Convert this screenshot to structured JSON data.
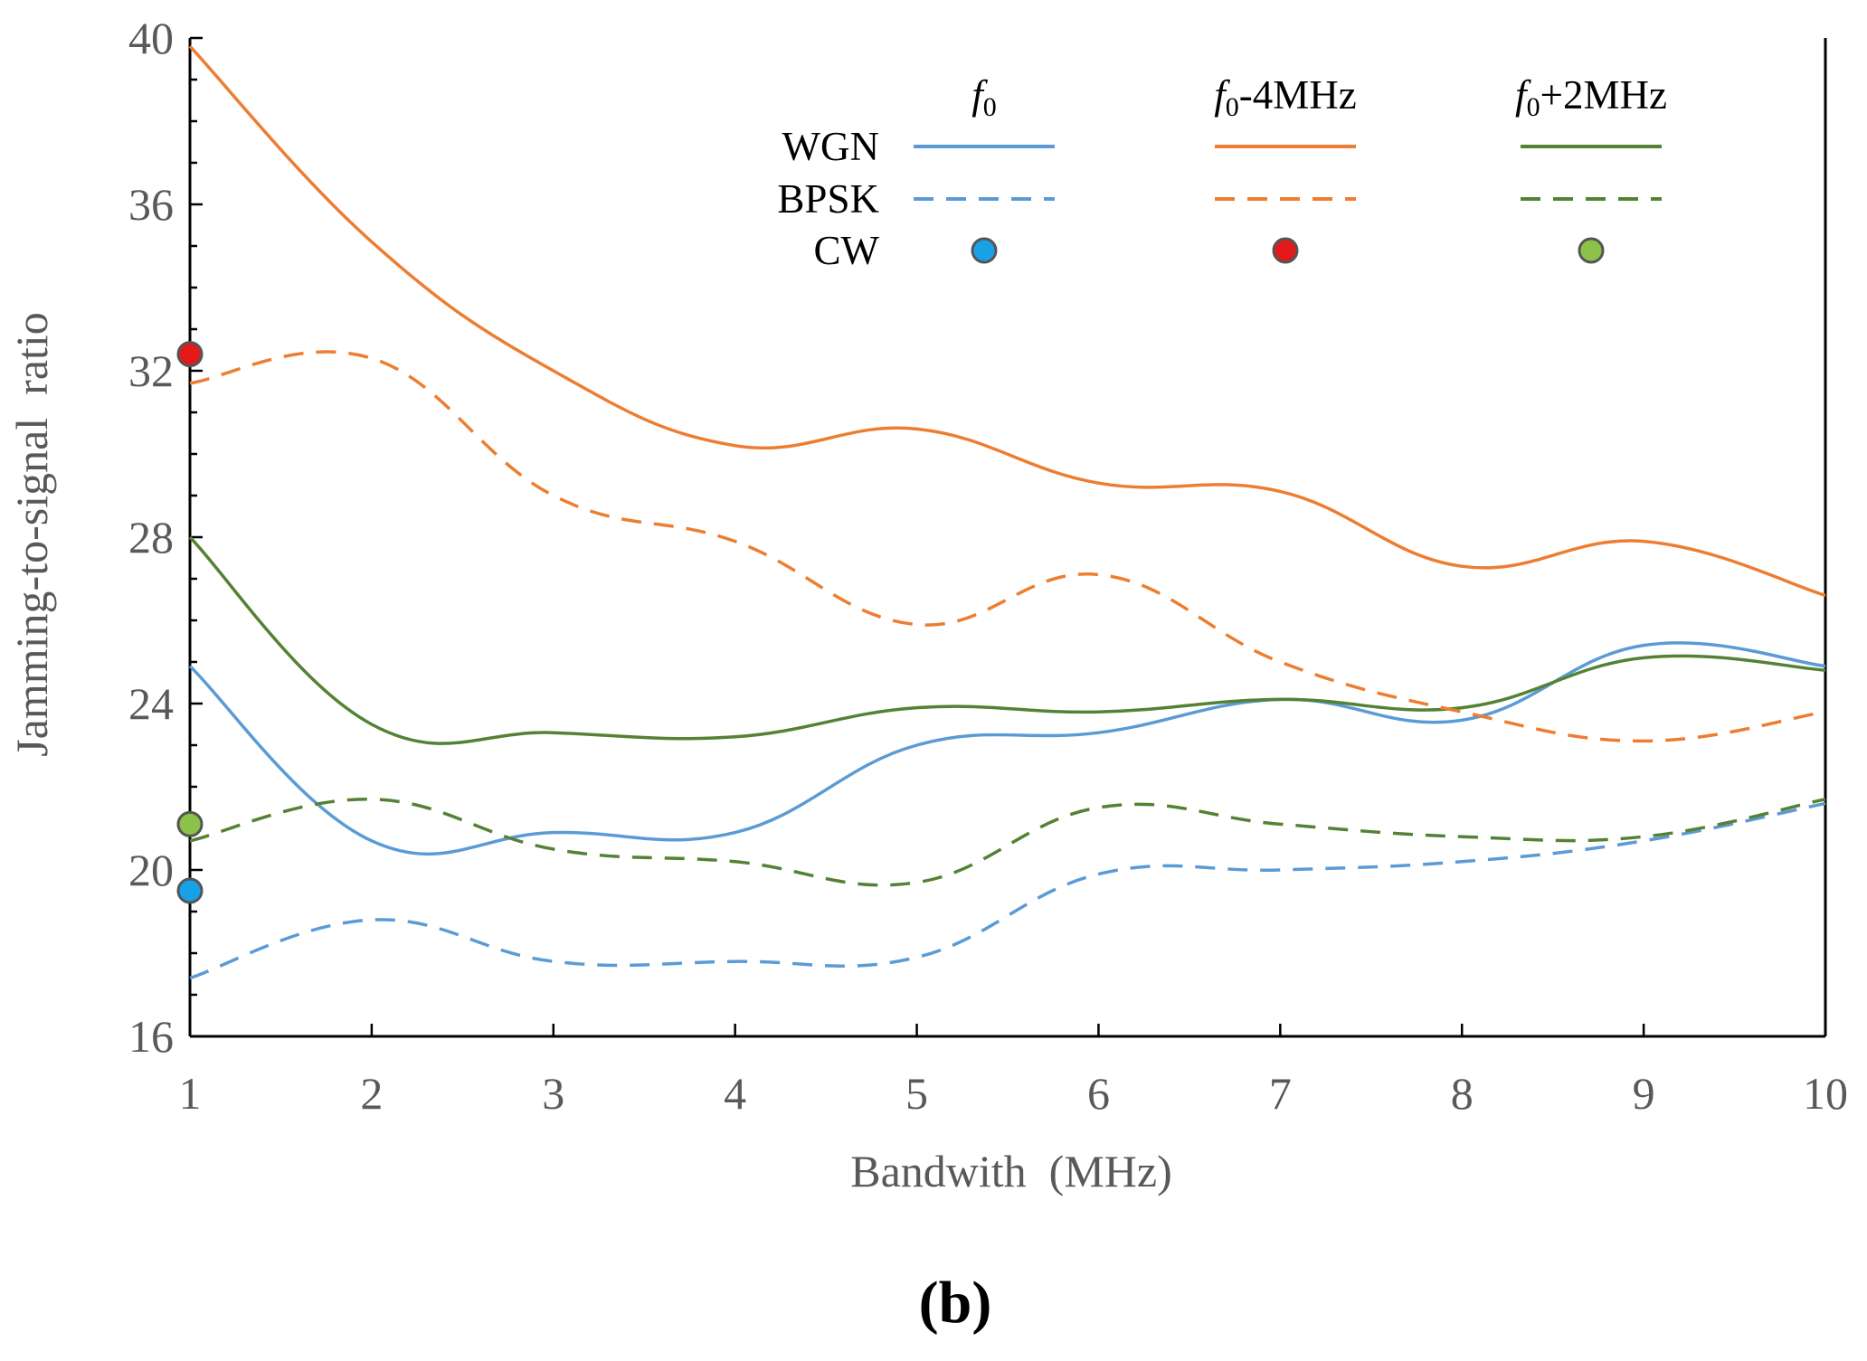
{
  "chart_data": {
    "type": "line",
    "title": "",
    "xlabel": "Bandwith  (MHz)",
    "ylabel": "Jamming-to-signal  ratio",
    "xlim": [
      1,
      10
    ],
    "ylim": [
      16,
      40
    ],
    "x_ticks": [
      "1",
      "2",
      "3",
      "4",
      "5",
      "6",
      "7",
      "8",
      "9",
      "10"
    ],
    "y_ticks": [
      "16",
      "20",
      "24",
      "28",
      "32",
      "36",
      "40"
    ],
    "grid": false,
    "caption": "b",
    "legend": {
      "placement": "top",
      "columns": [
        {
          "label": "f0",
          "sub": "0",
          "base": "f",
          "suffix": ""
        },
        {
          "label": "f0-4MHz",
          "sub": "0",
          "base": "f",
          "suffix": "-4MHz"
        },
        {
          "label": "f0+2MHz",
          "sub": "0",
          "base": "f",
          "suffix": "+2MHz"
        }
      ],
      "rows": [
        "WGN",
        "BPSK",
        "CW"
      ]
    },
    "colors": {
      "f0": "#5B9BD5",
      "f0_minus_4MHz": "#ED7D31",
      "f0_plus_2MHz": "#548235",
      "cw_f0": "#17A2E8",
      "cw_f0_minus_4MHz": "#E41A1A",
      "cw_f0_plus_2MHz": "#8BC34A"
    },
    "series": [
      {
        "name": "WGN f0",
        "style": "solid",
        "color": "#5B9BD5",
        "x": [
          1,
          2,
          3,
          4,
          5,
          6,
          7,
          8,
          9,
          10
        ],
        "values": [
          24.9,
          20.7,
          20.9,
          20.9,
          23.0,
          23.3,
          24.1,
          23.6,
          25.4,
          24.9
        ]
      },
      {
        "name": "WGN f0-4MHz",
        "style": "solid",
        "color": "#ED7D31",
        "x": [
          1,
          2,
          3,
          4,
          5,
          6,
          7,
          8,
          9,
          10
        ],
        "values": [
          39.8,
          35.1,
          32.0,
          30.2,
          30.6,
          29.3,
          29.1,
          27.3,
          27.9,
          26.6
        ]
      },
      {
        "name": "WGN f0+2MHz",
        "style": "solid",
        "color": "#548235",
        "x": [
          1,
          2,
          3,
          4,
          5,
          6,
          7,
          8,
          9,
          10
        ],
        "values": [
          28.0,
          23.5,
          23.3,
          23.2,
          23.9,
          23.8,
          24.1,
          23.9,
          25.1,
          24.8
        ]
      },
      {
        "name": "BPSK f0",
        "style": "dashed",
        "color": "#5B9BD5",
        "x": [
          1,
          2,
          3,
          4,
          5,
          6,
          7,
          8,
          9,
          10
        ],
        "values": [
          17.4,
          18.8,
          17.8,
          17.8,
          17.9,
          19.9,
          20.0,
          20.2,
          20.7,
          21.6
        ]
      },
      {
        "name": "BPSK f0-4MHz",
        "style": "dashed",
        "color": "#ED7D31",
        "x": [
          1,
          2,
          3,
          4,
          5,
          6,
          7,
          8,
          9,
          10
        ],
        "values": [
          31.7,
          32.3,
          29.0,
          27.9,
          25.9,
          27.1,
          25.0,
          23.8,
          23.1,
          23.8
        ]
      },
      {
        "name": "BPSK f0+2MHz",
        "style": "dashed",
        "color": "#548235",
        "x": [
          1,
          2,
          3,
          4,
          5,
          6,
          7,
          8,
          9,
          10
        ],
        "values": [
          20.7,
          21.7,
          20.5,
          20.2,
          19.7,
          21.5,
          21.1,
          20.8,
          20.8,
          21.7
        ]
      }
    ],
    "cw_points": [
      {
        "name": "CW f0",
        "x": 1,
        "y": 19.5,
        "color": "#17A2E8"
      },
      {
        "name": "CW f0-4MHz",
        "x": 1,
        "y": 32.4,
        "color": "#E41A1A"
      },
      {
        "name": "CW f0+2MHz",
        "x": 1,
        "y": 21.1,
        "color": "#8BC34A"
      }
    ]
  }
}
